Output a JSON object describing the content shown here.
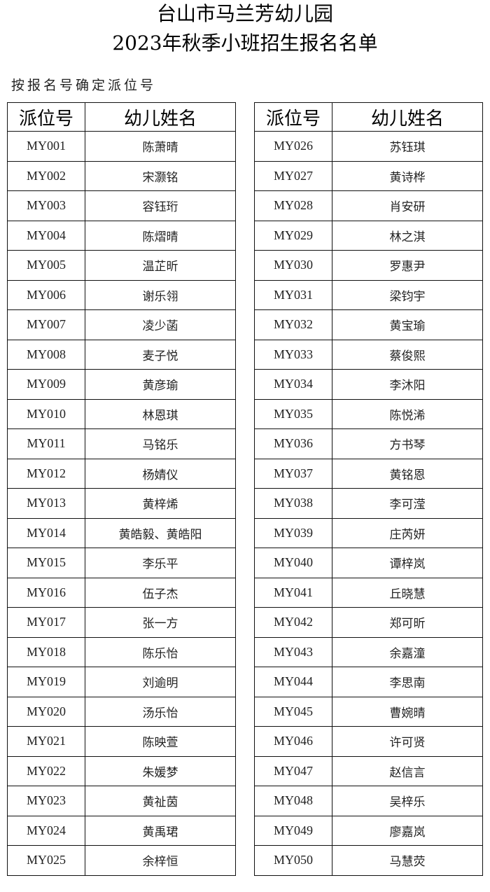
{
  "title_line1": "台山市马兰芳幼儿园",
  "title_line2": "2023年秋季小班招生报名名单",
  "subtitle": "按报名号确定派位号",
  "headers": {
    "code": "派位号",
    "name": "幼儿姓名"
  },
  "left_rows": [
    {
      "code": "MY001",
      "name": "陈萧晴"
    },
    {
      "code": "MY002",
      "name": "宋灏铭"
    },
    {
      "code": "MY003",
      "name": "容钰珩"
    },
    {
      "code": "MY004",
      "name": "陈熠晴"
    },
    {
      "code": "MY005",
      "name": "温芷昕"
    },
    {
      "code": "MY006",
      "name": "谢乐翎"
    },
    {
      "code": "MY007",
      "name": "凌少菡"
    },
    {
      "code": "MY008",
      "name": "麦子悦"
    },
    {
      "code": "MY009",
      "name": "黄彦瑜"
    },
    {
      "code": "MY010",
      "name": "林恩琪"
    },
    {
      "code": "MY011",
      "name": "马铭乐"
    },
    {
      "code": "MY012",
      "name": "杨婧仪"
    },
    {
      "code": "MY013",
      "name": "黄梓烯"
    },
    {
      "code": "MY014",
      "name": "黄皓毅、黄皓阳"
    },
    {
      "code": "MY015",
      "name": "李乐平"
    },
    {
      "code": "MY016",
      "name": "伍子杰"
    },
    {
      "code": "MY017",
      "name": "张一方"
    },
    {
      "code": "MY018",
      "name": "陈乐怡"
    },
    {
      "code": "MY019",
      "name": "刘逾明"
    },
    {
      "code": "MY020",
      "name": "汤乐怡"
    },
    {
      "code": "MY021",
      "name": "陈映萱"
    },
    {
      "code": "MY022",
      "name": "朱媛梦"
    },
    {
      "code": "MY023",
      "name": "黄祉茵"
    },
    {
      "code": "MY024",
      "name": "黄禹珺"
    },
    {
      "code": "MY025",
      "name": "余梓恒"
    }
  ],
  "right_rows": [
    {
      "code": "MY026",
      "name": "苏钰琪"
    },
    {
      "code": "MY027",
      "name": "黄诗桦"
    },
    {
      "code": "MY028",
      "name": "肖安研"
    },
    {
      "code": "MY029",
      "name": "林之淇"
    },
    {
      "code": "MY030",
      "name": "罗惠尹"
    },
    {
      "code": "MY031",
      "name": "梁钧宇"
    },
    {
      "code": "MY032",
      "name": "黄宝瑜"
    },
    {
      "code": "MY033",
      "name": "蔡俊熙"
    },
    {
      "code": "MY034",
      "name": "李沐阳"
    },
    {
      "code": "MY035",
      "name": "陈悦浠"
    },
    {
      "code": "MY036",
      "name": "方书琴"
    },
    {
      "code": "MY037",
      "name": "黄铭恩"
    },
    {
      "code": "MY038",
      "name": "李可滢"
    },
    {
      "code": "MY039",
      "name": "庄芮妍"
    },
    {
      "code": "MY040",
      "name": "谭梓岚"
    },
    {
      "code": "MY041",
      "name": "丘晓慧"
    },
    {
      "code": "MY042",
      "name": "郑可昕"
    },
    {
      "code": "MY043",
      "name": "余嘉潼"
    },
    {
      "code": "MY044",
      "name": "李思南"
    },
    {
      "code": "MY045",
      "name": "曹婉晴"
    },
    {
      "code": "MY046",
      "name": "许可贤"
    },
    {
      "code": "MY047",
      "name": "赵信言"
    },
    {
      "code": "MY048",
      "name": "吴梓乐"
    },
    {
      "code": "MY049",
      "name": "廖嘉岚"
    },
    {
      "code": "MY050",
      "name": "马慧荧"
    }
  ]
}
